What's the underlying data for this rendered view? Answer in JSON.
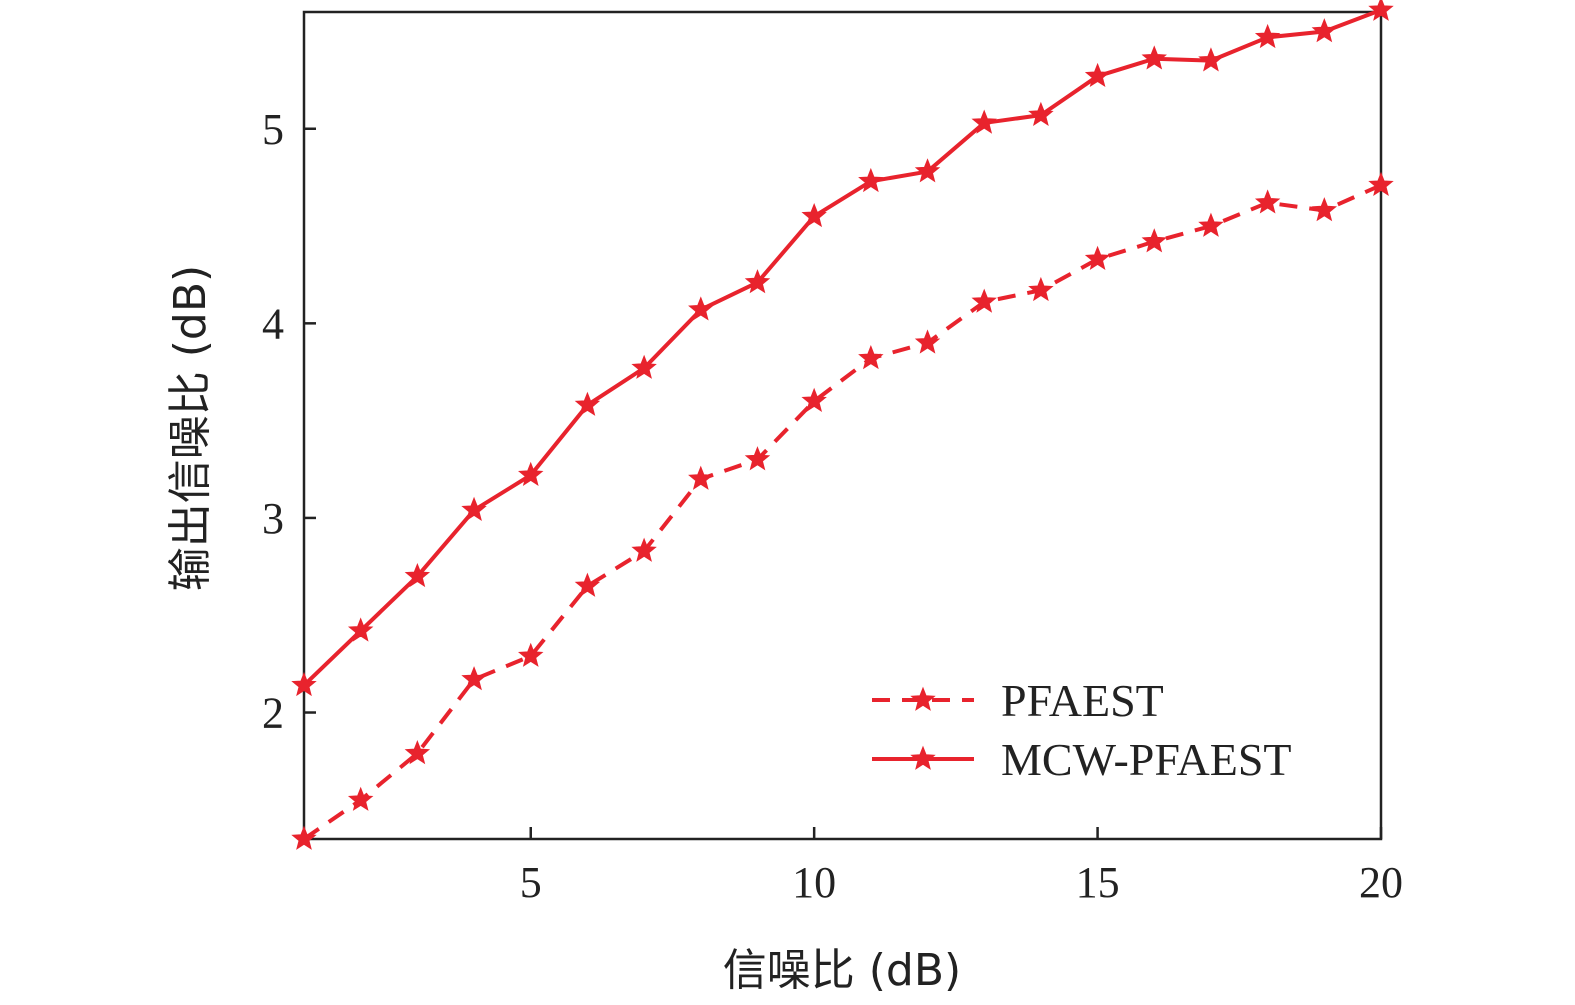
{
  "chart_data": {
    "type": "line",
    "title": "",
    "xlabel": "信噪比 (dB)",
    "ylabel": "输出信噪比 (dB)",
    "xlim": [
      1,
      20
    ],
    "ylim": [
      1.35,
      5.6
    ],
    "xticks": [
      5,
      10,
      15,
      20
    ],
    "yticks": [
      2,
      3,
      4,
      5
    ],
    "grid": false,
    "legend_position": "bottom-right",
    "x": [
      1,
      2,
      3,
      4,
      5,
      6,
      7,
      8,
      9,
      10,
      11,
      12,
      13,
      14,
      15,
      16,
      17,
      18,
      19,
      20
    ],
    "series": [
      {
        "name": "PFAEST",
        "style": "dashed",
        "marker": "star",
        "color": "#e8232d",
        "values": [
          1.35,
          1.55,
          1.79,
          2.17,
          2.29,
          2.65,
          2.83,
          3.2,
          3.3,
          3.6,
          3.82,
          3.9,
          4.11,
          4.17,
          4.33,
          4.42,
          4.5,
          4.62,
          4.58,
          4.71
        ]
      },
      {
        "name": "MCW-PFAEST",
        "style": "solid",
        "marker": "star",
        "color": "#e8232d",
        "values": [
          2.14,
          2.42,
          2.7,
          3.04,
          3.22,
          3.58,
          3.77,
          4.07,
          4.21,
          4.55,
          4.73,
          4.78,
          5.03,
          5.07,
          5.27,
          5.36,
          5.35,
          5.47,
          5.5,
          5.61
        ]
      }
    ]
  }
}
